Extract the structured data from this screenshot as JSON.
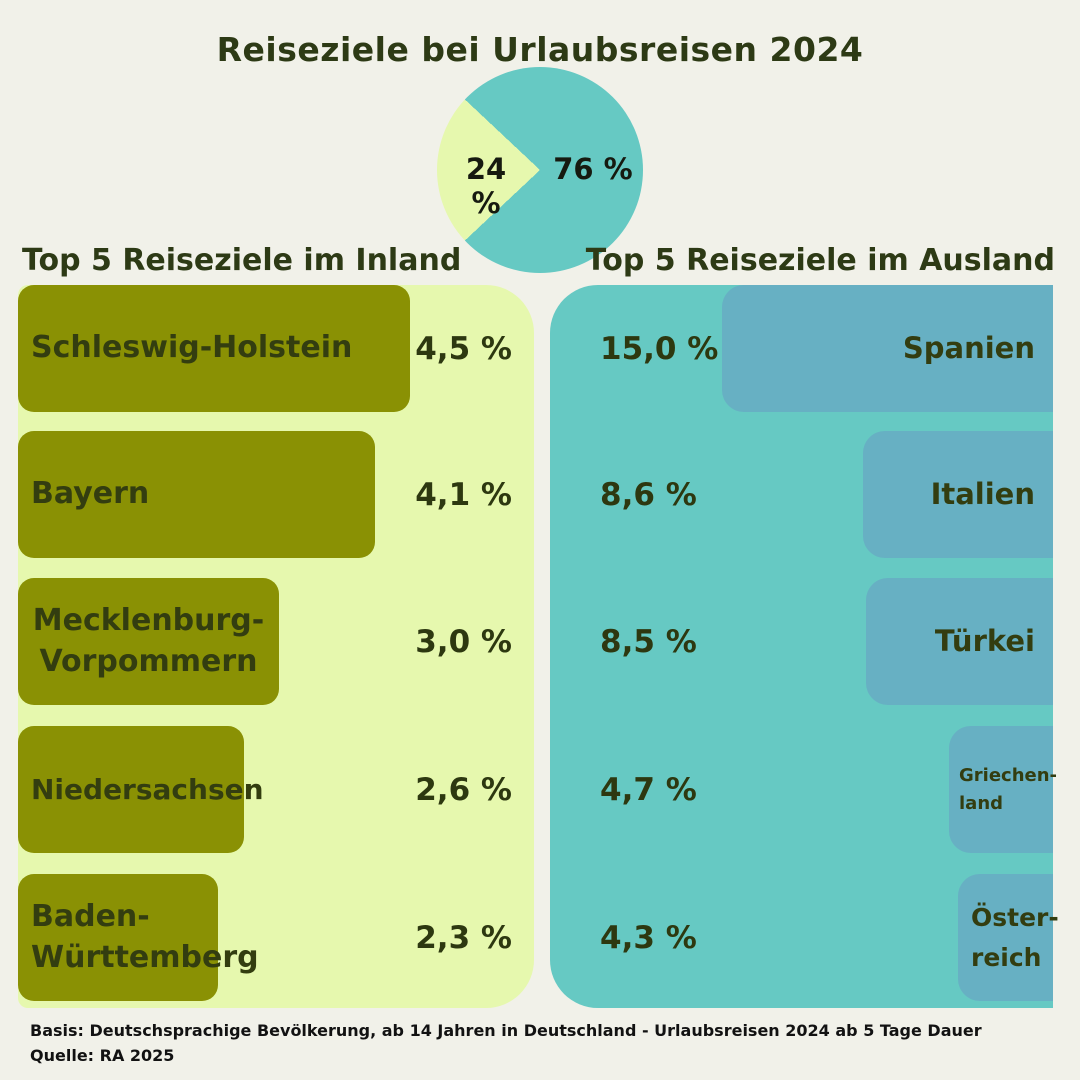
{
  "title": "Reiseziele bei Urlaubsreisen 2024",
  "pie": {
    "inland_share_label": "24 %",
    "ausland_share_label": "76 %"
  },
  "inland": {
    "heading": "Top 5 Reiseziele im Inland",
    "bars": [
      {
        "name": "Schleswig-Holstein",
        "line1": "Schleswig-Holstein",
        "line2": "",
        "value": 4.5,
        "value_label": "4,5 %"
      },
      {
        "name": "Bayern",
        "line1": "Bayern",
        "line2": "",
        "value": 4.1,
        "value_label": "4,1 %"
      },
      {
        "name": "Mecklenburg-Vorpommern",
        "line1": "Mecklenburg-",
        "line2": "Vorpommern",
        "value": 3.0,
        "value_label": "3,0 %"
      },
      {
        "name": "Niedersachsen",
        "line1": "Niedersachsen",
        "line2": "",
        "value": 2.6,
        "value_label": "2,6 %"
      },
      {
        "name": "Baden-Württemberg",
        "line1": "Baden-",
        "line2": "Württemberg",
        "value": 2.3,
        "value_label": "2,3 %"
      }
    ]
  },
  "ausland": {
    "heading": "Top 5 Reiseziele im Ausland",
    "bars": [
      {
        "name": "Spanien",
        "line1": "Spanien",
        "line2": "",
        "value": 15.0,
        "value_label": "15,0 %"
      },
      {
        "name": "Italien",
        "line1": "Italien",
        "line2": "",
        "value": 8.6,
        "value_label": "8,6 %"
      },
      {
        "name": "Türkei",
        "line1": "Türkei",
        "line2": "",
        "value": 8.5,
        "value_label": "8,5 %"
      },
      {
        "name": "Griechenland",
        "line1": "Griechen-",
        "line2": "land",
        "value": 4.7,
        "value_label": "4,7 %"
      },
      {
        "name": "Österreich",
        "line1": "Öster-",
        "line2": "reich",
        "value": 4.3,
        "value_label": "4,3 %"
      }
    ]
  },
  "footer": {
    "basis": "Basis: Deutschsprachige Bevölkerung, ab 14 Jahren in Deutschland - Urlaubsreisen 2024 ab 5 Tage Dauer",
    "quelle": "Quelle: RA 2025"
  },
  "colors": {
    "background": "#f1f1e9",
    "teal": "#66c9c3",
    "teal_bar": "#67b0c3",
    "light_green": "#e6f8ae",
    "olive_bar": "#8a9104",
    "dark_green_text": "#2d3a15"
  },
  "chart_data": [
    {
      "type": "pie",
      "title": "Reiseziele bei Urlaubsreisen 2024",
      "labels": [
        "Ausland",
        "Inland"
      ],
      "values": [
        76,
        24
      ],
      "unit": "%",
      "colors": [
        "#66c9c3",
        "#e6f8ae"
      ],
      "legend_position": "none",
      "annotations": [
        "76 %",
        "24 %"
      ]
    },
    {
      "type": "bar",
      "title": "Top 5 Reiseziele im Inland",
      "orientation": "horizontal",
      "categories": [
        "Schleswig-Holstein",
        "Bayern",
        "Mecklenburg-Vorpommern",
        "Niedersachsen",
        "Baden-Württemberg"
      ],
      "values": [
        4.5,
        4.1,
        3.0,
        2.6,
        2.3
      ],
      "unit": "%",
      "xlabel": "",
      "ylabel": "",
      "bar_color": "#8a9104",
      "grid": false
    },
    {
      "type": "bar",
      "title": "Top 5 Reiseziele im Ausland",
      "orientation": "horizontal",
      "categories": [
        "Spanien",
        "Italien",
        "Türkei",
        "Griechenland",
        "Österreich"
      ],
      "values": [
        15.0,
        8.6,
        8.5,
        4.7,
        4.3
      ],
      "unit": "%",
      "xlabel": "",
      "ylabel": "",
      "bar_color": "#67b0c3",
      "grid": false
    }
  ]
}
